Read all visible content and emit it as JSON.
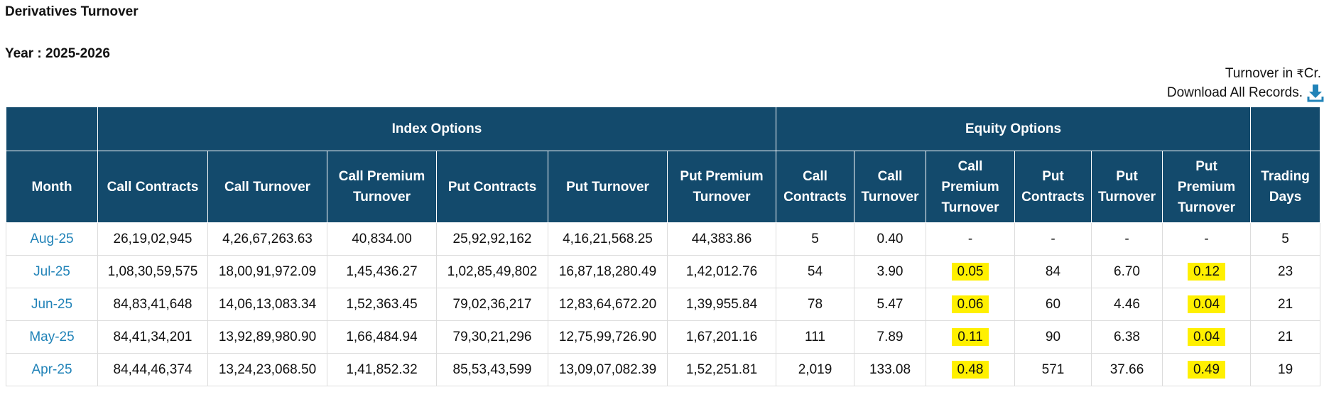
{
  "page": {
    "title": "Derivatives Turnover",
    "year_label": "Year : 2025-2026",
    "unit_prefix": "Turnover in ",
    "unit_symbol": "₹",
    "unit_suffix": "Cr.",
    "download_label": "Download All Records.",
    "download_icon": "download-icon"
  },
  "colors": {
    "header_bg": "#134a6c",
    "link": "#2183b8",
    "highlight": "#fff000"
  },
  "table": {
    "groups": [
      "Index Options",
      "Equity Options"
    ],
    "columns": [
      "Month",
      "Call Contracts",
      "Call Turnover",
      "Call Premium Turnover",
      "Put Contracts",
      "Put Turnover",
      "Put Premium Turnover",
      "Call Contracts",
      "Call Turnover",
      "Call Premium Turnover",
      "Put Contracts",
      "Put Turnover",
      "Put Premium Turnover",
      "Trading Days"
    ],
    "rows": [
      [
        "Aug-25",
        "26,19,02,945",
        "4,26,67,263.63",
        "40,834.00",
        "25,92,92,162",
        "4,16,21,568.25",
        "44,383.86",
        "5",
        "0.40",
        "-",
        "-",
        "-",
        "-",
        "5"
      ],
      [
        "Jul-25",
        "1,08,30,59,575",
        "18,00,91,972.09",
        "1,45,436.27",
        "1,02,85,49,802",
        "16,87,18,280.49",
        "1,42,012.76",
        "54",
        "3.90",
        "0.05",
        "84",
        "6.70",
        "0.12",
        "23"
      ],
      [
        "Jun-25",
        "84,83,41,648",
        "14,06,13,083.34",
        "1,52,363.45",
        "79,02,36,217",
        "12,83,64,672.20",
        "1,39,955.84",
        "78",
        "5.47",
        "0.06",
        "60",
        "4.46",
        "0.04",
        "21"
      ],
      [
        "May-25",
        "84,41,34,201",
        "13,92,89,980.90",
        "1,66,484.94",
        "79,30,21,296",
        "12,75,99,726.90",
        "1,67,201.16",
        "111",
        "7.89",
        "0.11",
        "90",
        "6.38",
        "0.04",
        "21"
      ],
      [
        "Apr-25",
        "84,44,46,374",
        "13,24,23,068.50",
        "1,41,852.32",
        "85,53,43,599",
        "13,09,07,082.39",
        "1,52,251.81",
        "2,019",
        "133.08",
        "0.48",
        "571",
        "37.66",
        "0.49",
        "19"
      ]
    ],
    "highlighted_cells": [
      [
        1,
        9
      ],
      [
        1,
        12
      ],
      [
        2,
        9
      ],
      [
        2,
        12
      ],
      [
        3,
        9
      ],
      [
        3,
        12
      ],
      [
        4,
        9
      ],
      [
        4,
        12
      ]
    ]
  }
}
